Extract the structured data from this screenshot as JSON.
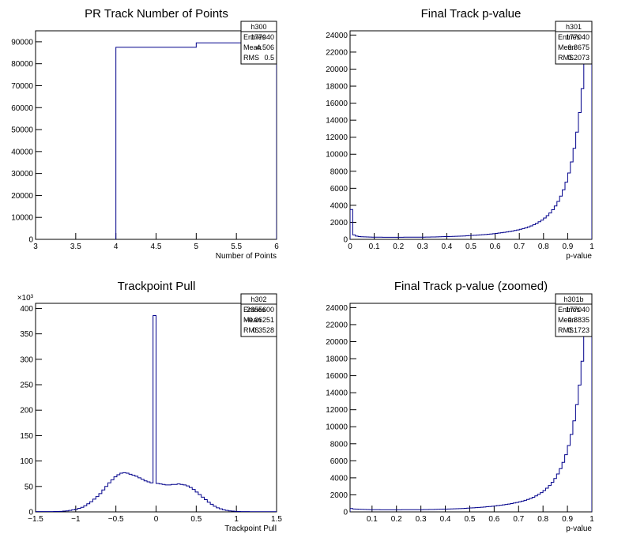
{
  "chart_data": [
    {
      "type": "histogram",
      "title": "PR Track Number of Points",
      "xlabel": "Number of Points",
      "ylabel": "",
      "xlim": [
        3,
        6
      ],
      "ylim": [
        0,
        95000
      ],
      "xticks": [
        "3",
        "3.5",
        "4",
        "4.5",
        "5",
        "5.5",
        "6"
      ],
      "yticks": [
        "0",
        "10000",
        "20000",
        "30000",
        "40000",
        "50000",
        "60000",
        "70000",
        "80000",
        "90000"
      ],
      "y_multiplier": "",
      "bins": [
        [
          4,
          5,
          87500
        ],
        [
          5,
          6,
          89500
        ]
      ],
      "series_color": "#00008b",
      "stats": {
        "name": "h300",
        "rows": [
          [
            "Entries",
            "177040"
          ],
          [
            "Mean",
            "4.506"
          ],
          [
            "RMS",
            "0.5"
          ]
        ]
      }
    },
    {
      "type": "histogram",
      "title": "Final Track p-value",
      "xlabel": "p-value",
      "ylabel": "",
      "xlim": [
        0,
        1
      ],
      "ylim": [
        0,
        24500
      ],
      "xticks": [
        "0",
        "0.1",
        "0.2",
        "0.3",
        "0.4",
        "0.5",
        "0.6",
        "0.7",
        "0.8",
        "0.9",
        "1"
      ],
      "yticks": [
        "0",
        "2000",
        "4000",
        "6000",
        "8000",
        "10000",
        "12000",
        "14000",
        "16000",
        "18000",
        "20000",
        "22000",
        "24000"
      ],
      "y_multiplier": "",
      "bin_range": [
        0,
        1
      ],
      "counts": [
        3500,
        520,
        380,
        320,
        300,
        290,
        280,
        270,
        260,
        260,
        250,
        250,
        240,
        240,
        240,
        240,
        240,
        240,
        240,
        240,
        250,
        250,
        250,
        250,
        250,
        260,
        260,
        260,
        270,
        270,
        280,
        280,
        290,
        300,
        310,
        320,
        330,
        340,
        350,
        360,
        370,
        380,
        400,
        420,
        440,
        460,
        480,
        500,
        520,
        550,
        570,
        600,
        630,
        660,
        700,
        740,
        780,
        820,
        870,
        920,
        980,
        1040,
        1100,
        1180,
        1260,
        1360,
        1460,
        1580,
        1720,
        1880,
        2060,
        2260,
        2500,
        2780,
        3100,
        3480,
        3920,
        4450,
        5080,
        5820,
        6720,
        7800,
        9100,
        10700,
        12600,
        14900,
        17700,
        21100,
        24400,
        24400
      ],
      "series_color": "#00008b",
      "stats": {
        "name": "h301",
        "rows": [
          [
            "Entries",
            "177040"
          ],
          [
            "Mean",
            "0.8675"
          ],
          [
            "RMS",
            "0.2073"
          ]
        ]
      }
    },
    {
      "type": "histogram",
      "title": "Trackpoint Pull",
      "xlabel": "Trackpoint Pull",
      "ylabel": "",
      "xlim": [
        -1.5,
        1.5
      ],
      "ylim": [
        0,
        410
      ],
      "xticks": [
        "−1.5",
        "−1",
        "−0.5",
        "0",
        "0.5",
        "1",
        "1.5"
      ],
      "yticks": [
        "0",
        "50",
        "100",
        "150",
        "200",
        "250",
        "300",
        "350",
        "400"
      ],
      "y_multiplier": "×10³",
      "bin_range": [
        -1.5,
        1.5
      ],
      "counts": [
        0.5,
        0.5,
        0.5,
        0.5,
        0.5,
        0.6,
        0.7,
        0.8,
        1,
        1.5,
        2,
        3,
        4,
        5,
        7,
        9,
        12,
        16,
        20,
        25,
        30,
        36,
        43,
        50,
        57,
        63,
        69,
        73,
        76,
        77,
        76,
        74,
        72,
        70,
        67,
        64,
        61,
        59,
        57,
        386,
        56,
        55,
        54,
        53,
        53,
        54,
        54,
        55,
        54,
        53,
        51,
        48,
        44,
        39,
        34,
        29,
        24,
        19,
        15,
        11,
        8,
        6,
        4,
        3,
        2,
        1.5,
        1,
        0.8,
        0.6,
        0.5,
        0.5,
        0.4,
        0.4,
        0.4,
        0.3,
        0.3,
        0.3,
        0.3,
        0.3,
        0.3
      ],
      "series_color": "#00008b",
      "stats": {
        "name": "h302",
        "rows": [
          [
            "Entries",
            "2655600"
          ],
          [
            "Mean",
            "−0.06251"
          ],
          [
            "RMS",
            "0.3528"
          ]
        ]
      }
    },
    {
      "type": "histogram",
      "title": "Final Track p-value (zoomed)",
      "xlabel": "p-value",
      "ylabel": "",
      "xlim": [
        0.01,
        1
      ],
      "ylim": [
        0,
        24500
      ],
      "xticks": [
        "0.1",
        "0.2",
        "0.3",
        "0.4",
        "0.5",
        "0.6",
        "0.7",
        "0.8",
        "0.9",
        "1"
      ],
      "yticks": [
        "0",
        "2000",
        "4000",
        "6000",
        "8000",
        "10000",
        "12000",
        "14000",
        "16000",
        "18000",
        "20000",
        "22000",
        "24000"
      ],
      "y_multiplier": "",
      "bin_range": [
        0.01,
        1
      ],
      "counts": [
        400,
        340,
        320,
        300,
        290,
        280,
        270,
        260,
        260,
        250,
        250,
        240,
        240,
        240,
        240,
        240,
        240,
        240,
        240,
        250,
        250,
        250,
        250,
        250,
        260,
        260,
        260,
        270,
        270,
        280,
        280,
        290,
        300,
        310,
        320,
        330,
        340,
        350,
        360,
        370,
        380,
        400,
        420,
        440,
        460,
        480,
        500,
        520,
        550,
        570,
        600,
        630,
        660,
        700,
        740,
        780,
        820,
        870,
        920,
        980,
        1040,
        1100,
        1180,
        1260,
        1360,
        1460,
        1580,
        1720,
        1880,
        2060,
        2260,
        2500,
        2780,
        3100,
        3480,
        3920,
        4450,
        5080,
        5820,
        6720,
        7800,
        9100,
        10700,
        12600,
        14900,
        17700,
        21100,
        24400,
        24400
      ],
      "series_color": "#00008b",
      "stats": {
        "name": "h301b",
        "rows": [
          [
            "Entries",
            "177040"
          ],
          [
            "Mean",
            "0.8835"
          ],
          [
            "RMS",
            "0.1723"
          ]
        ]
      }
    }
  ]
}
